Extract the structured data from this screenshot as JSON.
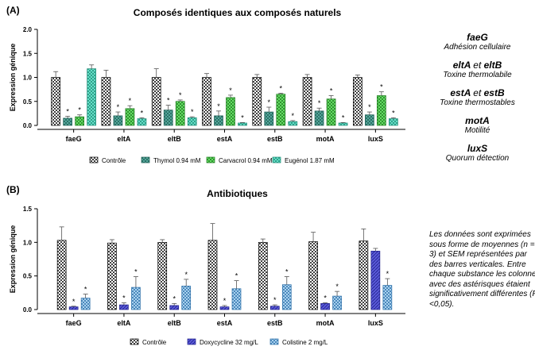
{
  "panels": [
    {
      "label": "(A)",
      "chart_data": {
        "type": "bar",
        "title": "Composés identiques aux composés naturels",
        "ylabel": "Expression génique",
        "xlabel": "",
        "ylim": [
          0,
          2.0
        ],
        "yticks": [
          "0.0",
          "0.5",
          "1.0",
          "1.5",
          "2.0"
        ],
        "categories": [
          "faeG",
          "eltA",
          "eltB",
          "estA",
          "estB",
          "motA",
          "luxS"
        ],
        "significance_marker": "*",
        "legend_position": "bottom",
        "series": [
          {
            "name": "Contrôle",
            "values": [
              1.0,
              1.0,
              1.0,
              1.0,
              1.0,
              1.0,
              1.0
            ],
            "errors": [
              0.12,
              0.15,
              0.18,
              0.08,
              0.06,
              0.06,
              0.05
            ],
            "significant": [
              false,
              false,
              false,
              false,
              false,
              false,
              false
            ],
            "fill": "#ffffff",
            "stroke": "#000000",
            "pattern": "checker"
          },
          {
            "name": "Thymol 0.94 mM",
            "values": [
              0.15,
              0.2,
              0.32,
              0.2,
              0.28,
              0.3,
              0.22
            ],
            "errors": [
              0.04,
              0.08,
              0.1,
              0.1,
              0.1,
              0.06,
              0.06
            ],
            "significant": [
              true,
              true,
              true,
              true,
              true,
              true,
              true
            ],
            "fill": "#55a79b",
            "stroke": "#1f5e55",
            "pattern": "checker"
          },
          {
            "name": "Carvacrol 0.94 mM",
            "values": [
              0.18,
              0.35,
              0.5,
              0.58,
              0.65,
              0.55,
              0.62
            ],
            "errors": [
              0.04,
              0.06,
              0.03,
              0.05,
              0.02,
              0.07,
              0.08
            ],
            "significant": [
              true,
              true,
              true,
              true,
              true,
              true,
              true
            ],
            "fill": "#66dd66",
            "stroke": "#1e7a1e",
            "pattern": "checker"
          },
          {
            "name": "Eugénol 1.87 mM",
            "values": [
              1.18,
              0.14,
              0.16,
              0.05,
              0.08,
              0.05,
              0.14
            ],
            "errors": [
              0.08,
              0.02,
              0.02,
              0.01,
              0.02,
              0.01,
              0.02
            ],
            "significant": [
              false,
              true,
              true,
              true,
              true,
              true,
              true
            ],
            "fill": "#66e0c8",
            "stroke": "#1f8a76",
            "pattern": "checker"
          }
        ]
      }
    },
    {
      "label": "(B)",
      "chart_data": {
        "type": "bar",
        "title": "Antibiotiques",
        "ylabel": "Expression génique",
        "xlabel": "",
        "ylim": [
          0,
          1.5
        ],
        "yticks": [
          "0.0",
          "0.5",
          "1.0",
          "1.5"
        ],
        "categories": [
          "faeG",
          "eltA",
          "eltB",
          "estA",
          "estB",
          "motA",
          "luxS"
        ],
        "significance_marker": "*",
        "legend_position": "bottom",
        "series": [
          {
            "name": "Contrôle",
            "values": [
              1.03,
              0.99,
              1.0,
              1.03,
              1.0,
              1.01,
              1.02
            ],
            "errors": [
              0.2,
              0.05,
              0.04,
              0.25,
              0.05,
              0.14,
              0.18
            ],
            "significant": [
              false,
              false,
              false,
              false,
              false,
              false,
              false
            ],
            "fill": "#ffffff",
            "stroke": "#000000",
            "pattern": "checker"
          },
          {
            "name": "Doxycycline 32 mg/L",
            "values": [
              0.04,
              0.07,
              0.06,
              0.04,
              0.05,
              0.09,
              0.87
            ],
            "errors": [
              0.01,
              0.03,
              0.03,
              0.02,
              0.02,
              0.01,
              0.04
            ],
            "significant": [
              true,
              true,
              true,
              true,
              true,
              true,
              false
            ],
            "fill": "#5a5ad8",
            "stroke": "#1e1e8a",
            "pattern": "hatch"
          },
          {
            "name": "Colistine 2 mg/L",
            "values": [
              0.17,
              0.33,
              0.35,
              0.31,
              0.37,
              0.2,
              0.36
            ],
            "errors": [
              0.06,
              0.16,
              0.1,
              0.12,
              0.12,
              0.07,
              0.1
            ],
            "significant": [
              true,
              true,
              true,
              true,
              true,
              true,
              true
            ],
            "fill": "#a9d2f0",
            "stroke": "#2d6fa8",
            "pattern": "checker"
          }
        ]
      }
    }
  ],
  "side_legend": [
    {
      "gene": "faeG",
      "desc": "Adhésion cellulaire"
    },
    {
      "gene": "eltA",
      "joiner": "et",
      "gene2": "eltB",
      "desc": "Toxine thermolabile"
    },
    {
      "gene": "estA",
      "joiner": "et",
      "gene2": "estB",
      "desc": "Toxine thermostables"
    },
    {
      "gene": "motA",
      "desc": "Motilité"
    },
    {
      "gene": "luxS",
      "desc": "Quorum détection"
    }
  ],
  "note": "Les données sont exprimées sous forme de moyennes (n = 3) et SEM représentées par des barres verticales. Entre chaque substance les colonnes avec des astérisques étaient significativement différentes (P <0,05)."
}
